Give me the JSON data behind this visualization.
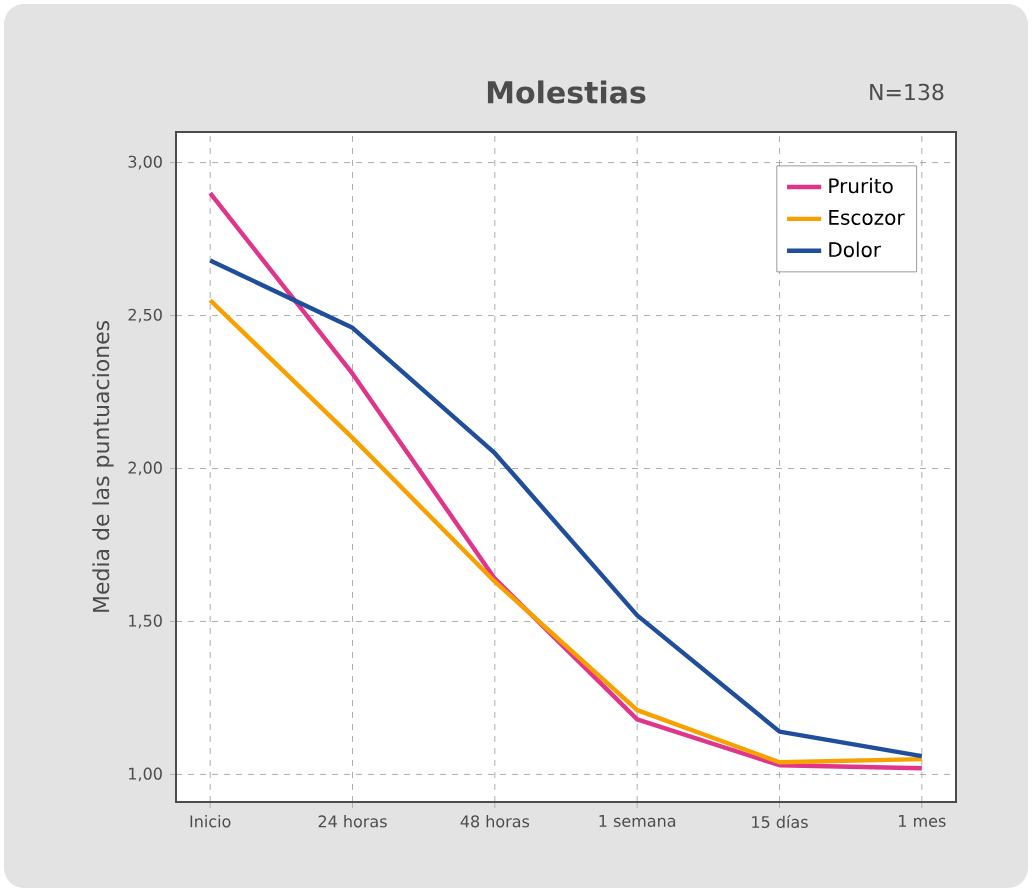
{
  "chart_data": {
    "type": "line",
    "title": "Molestias",
    "annotations": [
      "N=138"
    ],
    "ylabel": "Media de las puntuaciones",
    "categories": [
      "Inicio",
      "24 horas",
      "48 horas",
      "1 semana",
      "15 días",
      "1 mes"
    ],
    "series": [
      {
        "name": "Prurito",
        "color": "#e0358a",
        "values": [
          2.9,
          2.31,
          1.64,
          1.18,
          1.03,
          1.02
        ]
      },
      {
        "name": "Escozor",
        "color": "#f7a000",
        "values": [
          2.55,
          2.1,
          1.63,
          1.21,
          1.04,
          1.05
        ]
      },
      {
        "name": "Dolor",
        "color": "#1f4e9c",
        "values": [
          2.68,
          2.46,
          2.05,
          1.52,
          1.14,
          1.06
        ]
      }
    ],
    "ylim": [
      0.91,
      3.1
    ],
    "yticks": [
      {
        "value": 1,
        "label": "1,00"
      },
      {
        "value": 1.5,
        "label": "1,50"
      },
      {
        "value": 2,
        "label": "2,00"
      },
      {
        "value": 2.5,
        "label": "2,50"
      },
      {
        "value": 3,
        "label": "3,00"
      }
    ],
    "grid": true,
    "legend": "top right",
    "marker": "none",
    "line_style": "solid"
  }
}
